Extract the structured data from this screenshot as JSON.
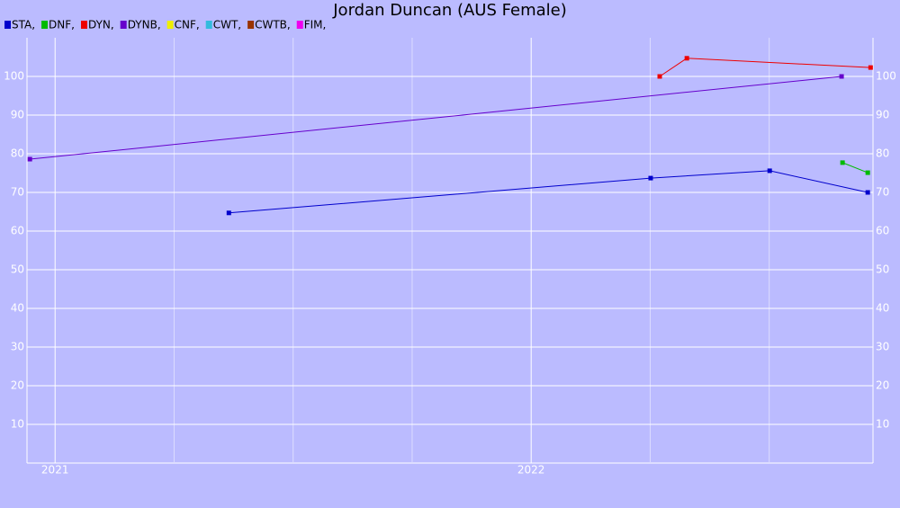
{
  "chart_data": {
    "type": "line",
    "title": "Jordan Duncan (AUS Female)",
    "series": [
      {
        "name": "STA,",
        "color": "#0000cc",
        "x": [
          2021.365,
          2022.251,
          2022.501,
          2022.707
        ],
        "values": [
          64.7,
          73.7,
          75.6,
          70.0
        ]
      },
      {
        "name": "DNF,",
        "color": "#00bb00",
        "x": [
          2022.654,
          2022.707
        ],
        "values": [
          77.7,
          75.1
        ]
      },
      {
        "name": "DYN,",
        "color": "#ee0000",
        "x": [
          2022.27,
          2022.327,
          2022.713
        ],
        "values": [
          100,
          104.7,
          102.3
        ]
      },
      {
        "name": "DYNB,",
        "color": "#6600cc",
        "x": [
          2020.947,
          2022.652
        ],
        "values": [
          78.6,
          100
        ]
      },
      {
        "name": "CNF,",
        "color": "#eeee00",
        "x": [],
        "values": []
      },
      {
        "name": "CWT,",
        "color": "#33bbdd",
        "x": [],
        "values": []
      },
      {
        "name": "CWTB,",
        "color": "#993300",
        "x": [],
        "values": []
      },
      {
        "name": "FIM,",
        "color": "#ee00ee",
        "x": [],
        "values": []
      }
    ],
    "xlim": [
      2020.941,
      2022.718
    ],
    "xticks": [
      2021,
      2022
    ],
    "xminor": [
      2021.25,
      2021.5,
      2021.75,
      2022.25,
      2022.5
    ],
    "ylim": [
      0,
      110
    ],
    "yticks": [
      10,
      20,
      30,
      40,
      50,
      60,
      70,
      80,
      90,
      100
    ],
    "grid": true
  }
}
